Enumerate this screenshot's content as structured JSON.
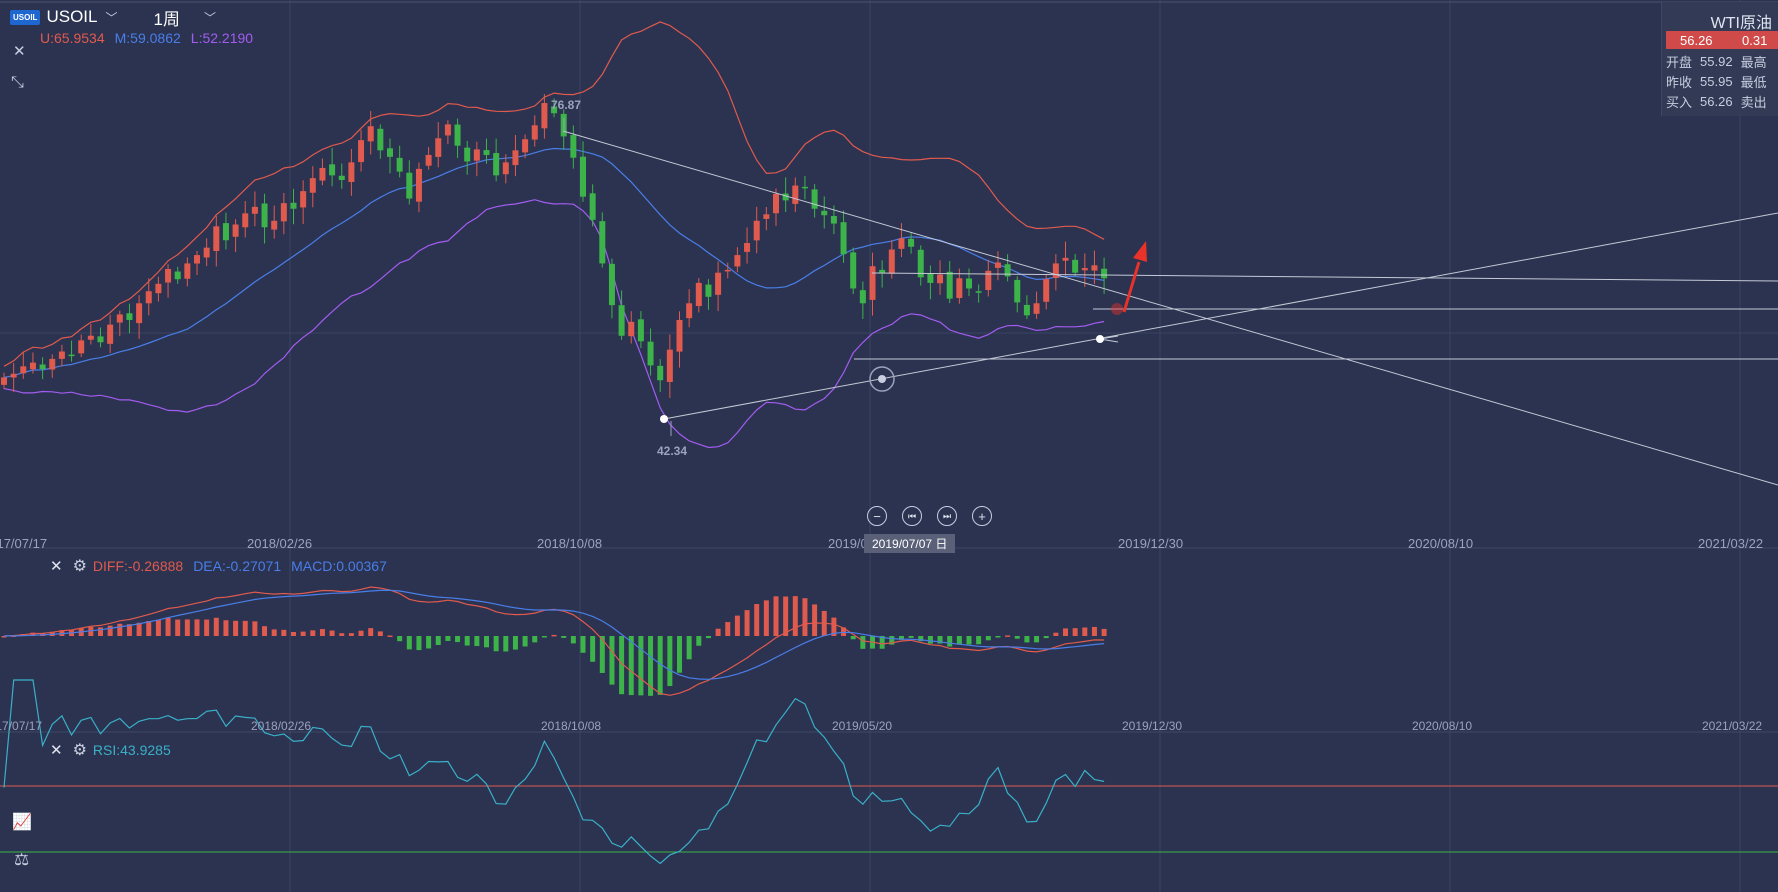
{
  "symbol": {
    "badge": "USOIL",
    "name": "USOIL",
    "period": "1周"
  },
  "boll": {
    "upper": "U:65.9534",
    "middle": "M:59.0862",
    "lower": "L:52.2190"
  },
  "colors": {
    "up": "#e05a4e",
    "down": "#3cb44a",
    "upper": "#e05a4e",
    "middle": "#4a7ee8",
    "lower": "#a35cf0",
    "rsi": "#3ab0c8"
  },
  "quote": {
    "title": "WTI原油",
    "price": "56.26",
    "change": "0.31",
    "open_label": "开盘",
    "open": "55.92",
    "high_label": "最高",
    "prev_label": "昨收",
    "prev": "55.95",
    "low_label": "最低",
    "bid_label": "买入",
    "bid": "56.26",
    "ask_label": "卖出"
  },
  "annotations": {
    "high": "76.87",
    "low": "42.34"
  },
  "x_axis": [
    "2017/07/17",
    "2018/02/26",
    "2018/10/08",
    "2019/05/20",
    "2019/12/30",
    "2020/08/10",
    "2021/03/22"
  ],
  "crosshair_date": "2019/07/07 日",
  "macd": {
    "diff": "DIFF:-0.26888",
    "dea": "DEA:-0.27071",
    "macd": "MACD:0.00367"
  },
  "rsi": {
    "label": "RSI:43.9285"
  },
  "icons": {
    "close": "close-icon",
    "collapse": "collapse-icon",
    "settings": "gear-icon",
    "zoom_out": "zoom-out-icon",
    "zoom_in": "zoom-in-icon",
    "prev": "skip-back-icon",
    "next": "skip-forward-icon"
  },
  "chart_data": {
    "type": "candlestick",
    "weekly_close": [
      45.6,
      46.0,
      46.8,
      47.2,
      46.5,
      47.6,
      48.4,
      47.9,
      49.6,
      50.1,
      49.4,
      51.3,
      52.4,
      51.8,
      53.6,
      54.9,
      55.7,
      57.3,
      56.2,
      57.9,
      58.8,
      59.6,
      61.9,
      60.4,
      62.1,
      63.3,
      64.0,
      61.8,
      62.5,
      64.4,
      63.8,
      65.7,
      67.1,
      68.2,
      67.4,
      66.9,
      68.8,
      71.2,
      72.7,
      70.1,
      69.4,
      67.8,
      64.9,
      68.1,
      69.6,
      71.4,
      72.9,
      70.6,
      68.9,
      70.2,
      69.6,
      67.4,
      68.8,
      70.1,
      71.3,
      72.8,
      75.2,
      74.1,
      71.6,
      69.3,
      65.1,
      62.6,
      57.9,
      53.4,
      50.1,
      51.6,
      49.5,
      46.9,
      45.3,
      48.6,
      51.8,
      53.6,
      55.8,
      54.3,
      56.9,
      57.2,
      58.8,
      60.1,
      62.5,
      63.2,
      65.4,
      64.7,
      66.3,
      66.0,
      63.8,
      63.1,
      62.2,
      58.9,
      55.2,
      53.6,
      57.6,
      56.9,
      59.4,
      60.6,
      59.7,
      56.4,
      55.8,
      56.7,
      54.1,
      56.3,
      55.2,
      54.8,
      57.1,
      58.0,
      56.5,
      53.7,
      52.3,
      53.6,
      56.2,
      57.9,
      58.5,
      56.9,
      57.4,
      57.7,
      56.3
    ]
  }
}
